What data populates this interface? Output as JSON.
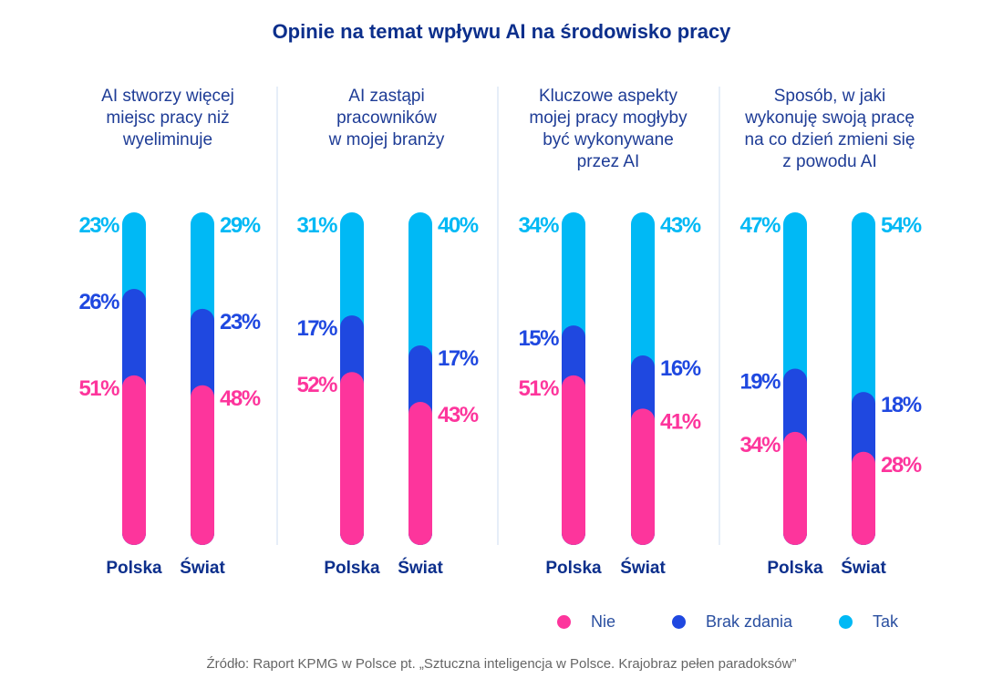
{
  "chart_data": {
    "type": "bar",
    "stacked": true,
    "title": "Opinie na temat wpływu AI na środowisko pracy",
    "colors": {
      "Nie": "#fd359c",
      "Brak zdania": "#1f48e0",
      "Tak": "#00b9f5"
    },
    "legend": [
      "Nie",
      "Brak zdania",
      "Tak"
    ],
    "legend_placement": "bottom-right",
    "panels": [
      {
        "title": "AI stworzy więcej\nmiejsc pracy niż\nwyeliminuje",
        "bars": [
          {
            "label": "Polska",
            "Nie": 51,
            "Brak zdania": 26,
            "Tak": 23
          },
          {
            "label": "Świat",
            "Nie": 48,
            "Brak zdania": 23,
            "Tak": 29
          }
        ]
      },
      {
        "title": "AI zastąpi\npracowników\nw mojej branży",
        "bars": [
          {
            "label": "Polska",
            "Nie": 52,
            "Brak zdania": 17,
            "Tak": 31
          },
          {
            "label": "Świat",
            "Nie": 43,
            "Brak zdania": 17,
            "Tak": 40
          }
        ]
      },
      {
        "title": "Kluczowe aspekty\nmojej pracy mogłyby\nbyć wykonywane\nprzez AI",
        "bars": [
          {
            "label": "Polska",
            "Nie": 51,
            "Brak zdania": 15,
            "Tak": 34
          },
          {
            "label": "Świat",
            "Nie": 41,
            "Brak zdania": 16,
            "Tak": 43
          }
        ]
      },
      {
        "title": "Sposób, w jaki\nwykonuję swoją pracę\nna co dzień zmieni się\nz powodu AI",
        "bars": [
          {
            "label": "Polska",
            "Nie": 34,
            "Brak zdania": 19,
            "Tak": 47
          },
          {
            "label": "Świat",
            "Nie": 28,
            "Brak zdania": 18,
            "Tak": 54
          }
        ]
      }
    ]
  },
  "source": "Źródło: Raport KPMG w Polsce pt. „Sztuczna inteligencja w Polsce. Krajobraz pełen paradoksów”"
}
